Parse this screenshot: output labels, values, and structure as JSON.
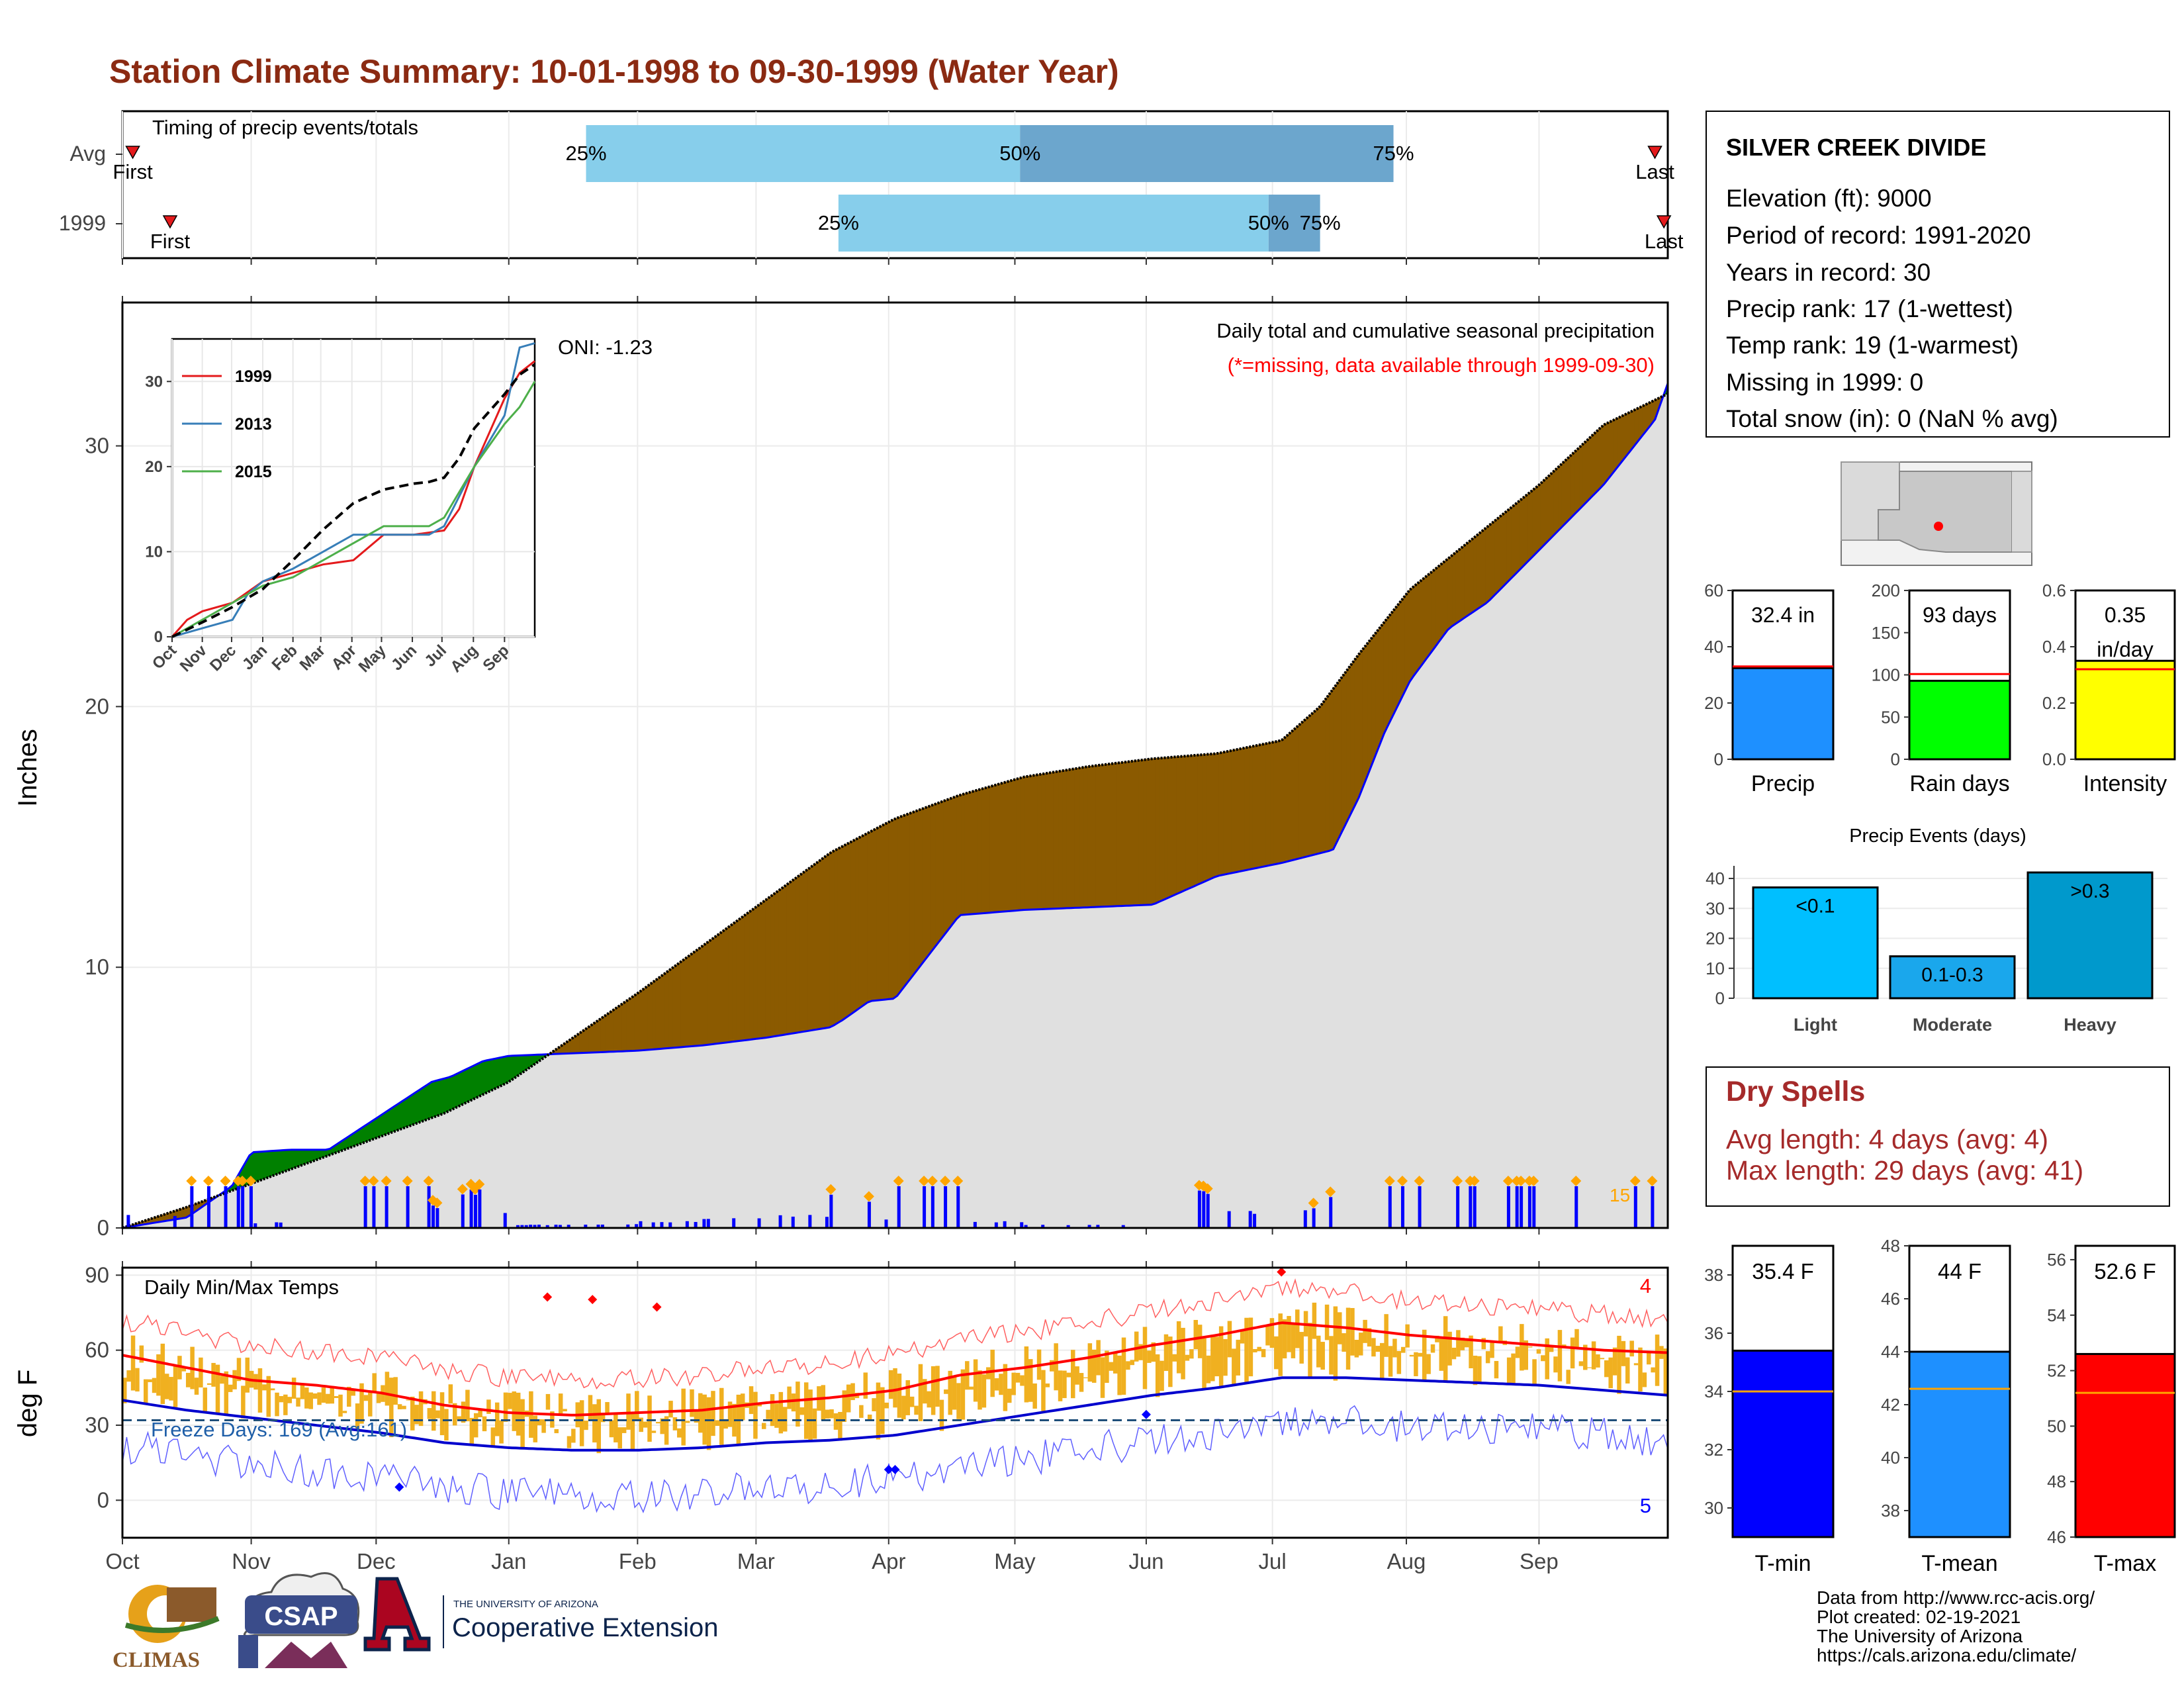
{
  "page": {
    "title": "Station Climate Summary: 10-01-1998 to 09-30-1999 (Water Year)",
    "title_color": "#8B2A12"
  },
  "timing": {
    "label": "Timing of precip events/totals",
    "rows": [
      {
        "name": "Avg",
        "first_label": "First",
        "last_label": "Last",
        "first": 0.08,
        "last": 11.9,
        "p25": 3.6,
        "p50": 6.97,
        "p75": 9.87
      },
      {
        "name": "1999",
        "first_label": "First",
        "last_label": "Last",
        "first": 0.37,
        "last": 11.97,
        "p25": 5.56,
        "p50": 8.9,
        "p75": 9.3
      }
    ],
    "pct_labels": [
      "25%",
      "50%",
      "75%"
    ],
    "colors": {
      "early": "#87CEEB",
      "late": "#6CA6CD",
      "marker": "#E41A1C"
    }
  },
  "precip": {
    "ylabel": "Inches",
    "annotation": "Daily total and cumulative seasonal precipitation",
    "missing_note": "(*=missing, data available through 1999-09-30)",
    "oni": "ONI: -1.23",
    "max_daily_label": "15",
    "y_ticks": [
      0,
      10,
      20,
      30
    ],
    "month_labels": [
      "Oct",
      "Nov",
      "Dec",
      "Jan",
      "Feb",
      "Mar",
      "Apr",
      "May",
      "Jun",
      "Jul",
      "Aug",
      "Sep"
    ],
    "colors": {
      "above": "#008000",
      "below": "#8B5A00",
      "fill": "#E0E0E0",
      "obs": "#0000FF",
      "avg": "#000000",
      "marker": "#FFA500"
    }
  },
  "inset": {
    "y_ticks": [
      0,
      10,
      20,
      30
    ],
    "month_labels": [
      "Oct",
      "Nov",
      "Dec",
      "Jan",
      "Feb",
      "Mar",
      "Apr",
      "May",
      "Jun",
      "Jul",
      "Aug",
      "Sep"
    ],
    "legend": [
      {
        "name": "1999",
        "color": "#E41A1C"
      },
      {
        "name": "2013",
        "color": "#377EB8"
      },
      {
        "name": "2015",
        "color": "#4DAF4A"
      }
    ]
  },
  "temps": {
    "ylabel": "deg F",
    "label": "Daily Min/Max Temps",
    "freeze_label": "Freeze Days: 169 (Avg:161)",
    "max_count": "4",
    "min_count": "5",
    "y_ticks": [
      0,
      30,
      60,
      90
    ],
    "freeze_line": 32,
    "colors": {
      "bar": "#F0B020",
      "tmax_avg": "#FF0000",
      "tmin_avg": "#0000CD",
      "rec_max": "#FF6060",
      "rec_min": "#6060FF"
    }
  },
  "station": {
    "name": "SILVER CREEK DIVIDE",
    "lines": [
      "Elevation (ft): 9000",
      "Period of record: 1991-2020",
      "Years in record: 30",
      "Precip rank: 17 (1-wettest)",
      "Temp rank: 19 (1-warmest)",
      "Missing in 1999: 0",
      "Total snow (in): 0 (NaN % avg)"
    ]
  },
  "summary_bars": [
    {
      "name": "Precip",
      "label": "32.4 in",
      "value": 32.4,
      "avg": 33.0,
      "max": 60,
      "ticks": [
        0,
        20,
        40,
        60
      ],
      "color": "#1E90FF"
    },
    {
      "name": "Rain days",
      "label": "93 days",
      "value": 93,
      "avg": 101,
      "max": 200,
      "ticks": [
        0,
        50,
        100,
        150,
        200
      ],
      "color": "#00FF00"
    },
    {
      "name": "Intensity",
      "label": "0.35\nin/day",
      "value": 0.35,
      "avg": 0.32,
      "max": 0.6,
      "ticks": [
        "0.0",
        "0.2",
        "0.4",
        "0.6"
      ],
      "color": "#FFFF00"
    }
  ],
  "precip_events": {
    "title": "Precip Events (days)",
    "ticks": [
      0,
      10,
      20,
      30,
      40
    ],
    "bars": [
      {
        "name": "Light",
        "label": "<0.1",
        "value": 37,
        "color": "#00BFFF"
      },
      {
        "name": "Moderate",
        "label": "0.1-0.3",
        "value": 14,
        "color": "#1AA7EC"
      },
      {
        "name": "Heavy",
        "label": ">0.3",
        "value": 42,
        "color": "#0099CC"
      }
    ]
  },
  "dry_spells": {
    "title": "Dry Spells",
    "lines": [
      "Avg length: 4 days (avg: 4)",
      "Max length: 29 days (avg: 41)"
    ],
    "color": "#A52A2A"
  },
  "temp_bars": [
    {
      "name": "T-min",
      "label": "35.4 F",
      "value": 35.4,
      "avg": 34.0,
      "min": 29,
      "max": 39,
      "ticks": [
        30,
        32,
        34,
        36,
        38
      ],
      "color": "#0000FF"
    },
    {
      "name": "T-mean",
      "label": "44 F",
      "value": 44.0,
      "avg": 42.6,
      "min": 37,
      "max": 48,
      "ticks": [
        38,
        40,
        42,
        44,
        46,
        48
      ],
      "color": "#1E90FF"
    },
    {
      "name": "T-max",
      "label": "52.6 F",
      "value": 52.6,
      "avg": 51.2,
      "min": 46,
      "max": 56.5,
      "ticks": [
        46,
        48,
        50,
        52,
        54,
        56
      ],
      "color": "#FF0000"
    }
  ],
  "credits": {
    "lines": [
      "Data from http://www.rcc-acis.org/",
      "Plot created: 02-19-2021",
      "The University of Arizona",
      "https://cals.arizona.edu/climate/"
    ],
    "logos": {
      "climas": "CLIMAS",
      "csap": "CSAP",
      "ua_small": "THE UNIVERSITY OF ARIZONA",
      "ua_big": "Cooperative Extension"
    }
  },
  "chart_data": [
    {
      "type": "area",
      "title": "Daily total and cumulative seasonal precipitation",
      "ylabel": "Inches",
      "ylim": [
        0,
        35.5
      ],
      "x_units": "months since Oct 1",
      "series": [
        {
          "name": "1999",
          "x": [
            0,
            0.5,
            0.85,
            1.0,
            1.3,
            1.6,
            2.0,
            2.4,
            2.55,
            2.8,
            3.0,
            3.5,
            4.0,
            4.5,
            5.0,
            5.5,
            5.6,
            5.8,
            6.0,
            6.5,
            7.0,
            7.5,
            8.0,
            8.5,
            9.0,
            9.4,
            9.6,
            9.8,
            10.0,
            10.3,
            10.6,
            11.0,
            11.5,
            11.9,
            12.0
          ],
          "values": [
            0,
            0.4,
            1.6,
            2.9,
            3.0,
            3.0,
            4.3,
            5.6,
            5.8,
            6.4,
            6.6,
            6.7,
            6.8,
            7.0,
            7.3,
            7.7,
            8.0,
            8.7,
            8.8,
            12.0,
            12.2,
            12.3,
            12.4,
            13.5,
            14.0,
            14.5,
            16.5,
            19.0,
            21.0,
            23.0,
            24.0,
            26.0,
            28.5,
            31.0,
            32.4
          ]
        },
        {
          "name": "Average",
          "x": [
            0,
            0.5,
            1.0,
            1.5,
            2.0,
            2.5,
            3.0,
            3.5,
            4.0,
            4.5,
            5.0,
            5.5,
            6.0,
            6.5,
            7.0,
            7.5,
            8.0,
            8.5,
            9.0,
            9.3,
            9.6,
            10.0,
            10.5,
            11.0,
            11.5,
            12.0
          ],
          "values": [
            0,
            0.8,
            1.7,
            2.6,
            3.5,
            4.4,
            5.6,
            7.3,
            9.0,
            10.8,
            12.6,
            14.4,
            15.7,
            16.6,
            17.3,
            17.7,
            18.0,
            18.2,
            18.7,
            20.0,
            22.0,
            24.5,
            26.5,
            28.5,
            30.8,
            32.0
          ]
        }
      ]
    },
    {
      "type": "line",
      "title": "Daily Min/Max Temps",
      "ylabel": "deg F",
      "ylim": [
        -15,
        93
      ],
      "series": [
        {
          "name": "Avg Tmax",
          "x": [
            0,
            0.5,
            1,
            1.5,
            2,
            2.5,
            3,
            3.5,
            4,
            4.5,
            5,
            5.5,
            6,
            6.5,
            7,
            7.5,
            8,
            8.5,
            9,
            9.5,
            10,
            10.5,
            11,
            11.5,
            12
          ],
          "values": [
            58,
            53,
            48,
            46,
            43,
            38,
            35,
            34,
            35,
            36,
            39,
            41,
            44,
            50,
            53,
            57,
            62,
            66,
            71,
            69,
            66,
            64,
            62,
            60,
            59
          ]
        },
        {
          "name": "Avg Tmin",
          "x": [
            0,
            0.5,
            1,
            1.5,
            2,
            2.5,
            3,
            3.5,
            4,
            4.5,
            5,
            5.5,
            6,
            6.5,
            7,
            7.5,
            8,
            8.5,
            9,
            9.5,
            10,
            10.5,
            11,
            11.5,
            12
          ],
          "values": [
            40,
            36,
            33,
            30,
            27,
            23,
            21,
            20,
            20,
            21,
            23,
            24,
            26,
            30,
            34,
            38,
            42,
            45,
            49,
            49,
            48,
            47,
            46,
            44,
            42
          ]
        }
      ]
    },
    {
      "type": "line",
      "title": "",
      "ylim": [
        0,
        35
      ],
      "series": [
        {
          "name": "1999",
          "x": [
            0,
            0.5,
            1,
            2,
            3,
            4,
            5,
            6,
            7,
            8,
            9,
            9.5,
            10,
            11,
            11.5,
            12
          ],
          "values": [
            0,
            2,
            3,
            4,
            6.5,
            7.5,
            8.5,
            9,
            12,
            12,
            12.5,
            15,
            20,
            28,
            31,
            32.4
          ]
        },
        {
          "name": "2013",
          "x": [
            0,
            1,
            2,
            2.5,
            3,
            4,
            5,
            6,
            7,
            8,
            8.5,
            9,
            10,
            11,
            11.5,
            12
          ],
          "values": [
            0,
            1,
            2,
            5,
            6.5,
            8,
            10,
            12,
            12,
            12,
            12,
            13,
            20,
            26,
            34,
            34.5
          ]
        },
        {
          "name": "2015",
          "x": [
            0,
            1,
            2,
            3,
            4,
            5,
            6,
            7,
            8,
            8.5,
            9,
            10,
            11,
            11.5,
            12
          ],
          "values": [
            0,
            2,
            4,
            6,
            7,
            9,
            11,
            13,
            13,
            13,
            14,
            20,
            25,
            27,
            30
          ]
        },
        {
          "name": "Average",
          "x": [
            0,
            1,
            2,
            3,
            4,
            5,
            6,
            7,
            8,
            8.5,
            9,
            9.5,
            10,
            11,
            11.5,
            12
          ],
          "values": [
            0,
            1.7,
            3.5,
            5.6,
            9.0,
            12.6,
            15.7,
            17.3,
            18.0,
            18.2,
            18.7,
            21,
            24.5,
            28.5,
            30.8,
            32
          ]
        }
      ]
    }
  ]
}
